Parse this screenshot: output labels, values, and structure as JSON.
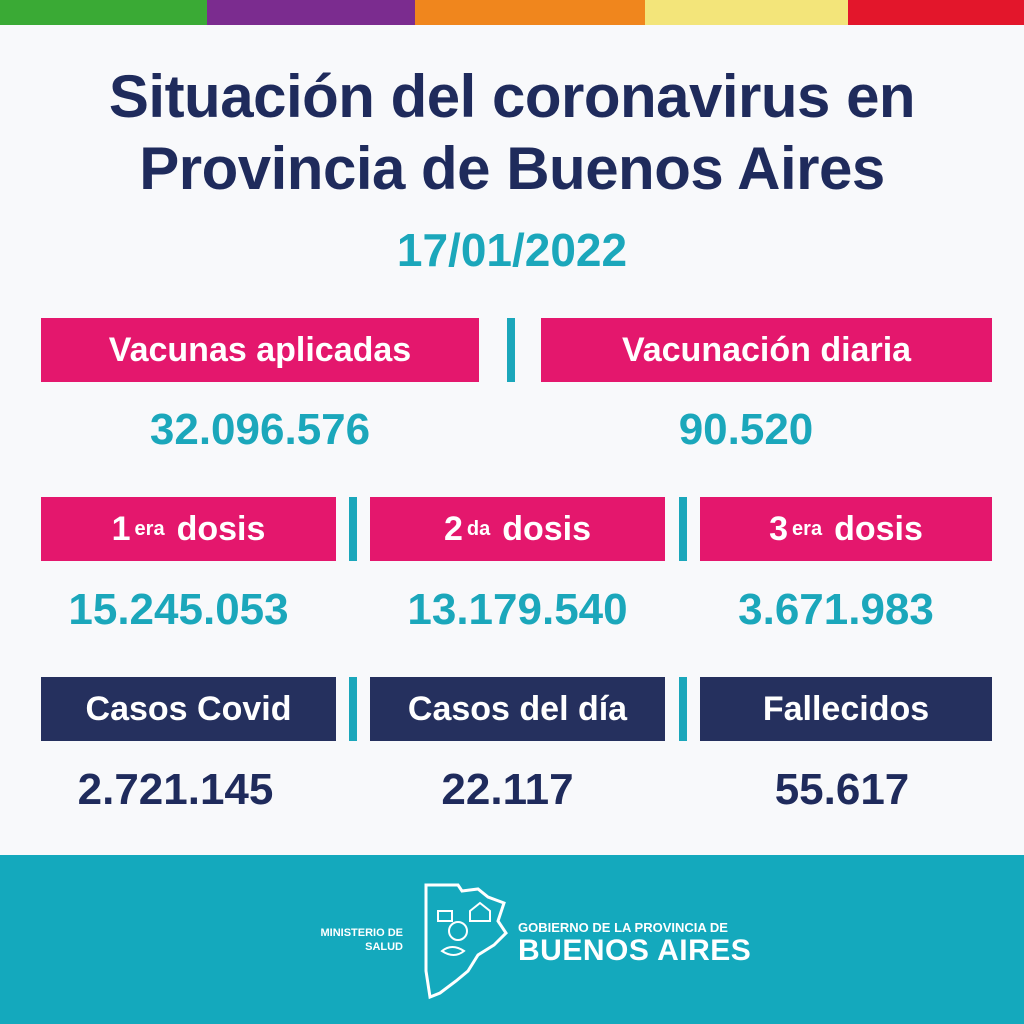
{
  "header": {
    "title_line1": "Situación del coronavirus en",
    "title_line2": "Provincia de Buenos Aires",
    "date": "17/01/2022"
  },
  "vaccines": [
    {
      "label": "Vacunas aplicadas",
      "value": "32.096.576"
    },
    {
      "label": "Vacunación diaria",
      "value": "90.520"
    }
  ],
  "doses": [
    {
      "number": "1",
      "suffix": "era",
      "word": "dosis",
      "value": "15.245.053"
    },
    {
      "number": "2",
      "suffix": "da",
      "word": "dosis",
      "value": "13.179.540"
    },
    {
      "number": "3",
      "suffix": "era",
      "word": "dosis",
      "value": "3.671.983"
    }
  ],
  "cases": [
    {
      "label": "Casos Covid",
      "value": "2.721.145"
    },
    {
      "label": "Casos del día",
      "value": "22.117"
    },
    {
      "label": "Fallecidos",
      "value": "55.617"
    }
  ],
  "footer": {
    "ministry_line1": "MINISTERIO DE",
    "ministry_line2": "SALUD",
    "gov_line1": "GOBIERNO DE LA PROVINCIA DE",
    "gov_line2": "BUENOS AIRES"
  }
}
